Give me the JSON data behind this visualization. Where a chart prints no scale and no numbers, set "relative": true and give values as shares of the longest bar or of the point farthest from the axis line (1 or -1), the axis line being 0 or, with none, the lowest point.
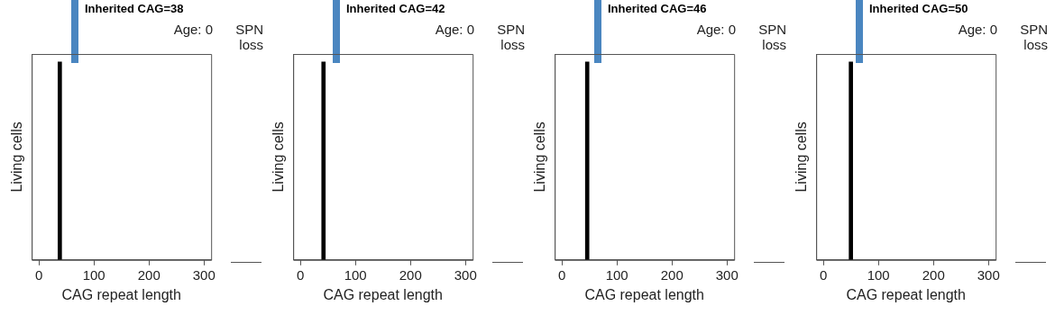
{
  "chart_data": [
    {
      "type": "bar",
      "title": "Inherited CAG=38",
      "subtitle": "Age: 0",
      "xlabel": "CAG repeat length",
      "ylabel": "Living cells",
      "x": [
        38
      ],
      "values": [
        1
      ],
      "color": "#000000",
      "relative": true,
      "xlim": [
        -13,
        313
      ],
      "xticks": [
        0,
        100,
        200,
        300
      ],
      "grid": false,
      "legend": false,
      "annotations": [
        "SPN loss"
      ]
    },
    {
      "type": "bar",
      "title": "Inherited CAG=42",
      "subtitle": "Age: 0",
      "xlabel": "CAG repeat length",
      "ylabel": "Living cells",
      "x": [
        42
      ],
      "values": [
        1
      ],
      "color": "#000000",
      "relative": true,
      "xlim": [
        -13,
        313
      ],
      "xticks": [
        0,
        100,
        200,
        300
      ],
      "grid": false,
      "legend": false,
      "annotations": [
        "SPN loss"
      ]
    },
    {
      "type": "bar",
      "title": "Inherited CAG=46",
      "subtitle": "Age: 0",
      "xlabel": "CAG repeat length",
      "ylabel": "Living cells",
      "x": [
        46
      ],
      "values": [
        1
      ],
      "color": "#000000",
      "relative": true,
      "xlim": [
        -13,
        313
      ],
      "xticks": [
        0,
        100,
        200,
        300
      ],
      "grid": false,
      "legend": false,
      "annotations": [
        "SPN loss"
      ]
    },
    {
      "type": "bar",
      "title": "Inherited CAG=50",
      "subtitle": "Age: 0",
      "xlabel": "CAG repeat length",
      "ylabel": "Living cells",
      "x": [
        50
      ],
      "values": [
        1
      ],
      "color": "#000000",
      "relative": true,
      "xlim": [
        -13,
        313
      ],
      "xticks": [
        0,
        100,
        200,
        300
      ],
      "grid": false,
      "legend": false,
      "annotations": [
        "SPN loss"
      ]
    }
  ]
}
